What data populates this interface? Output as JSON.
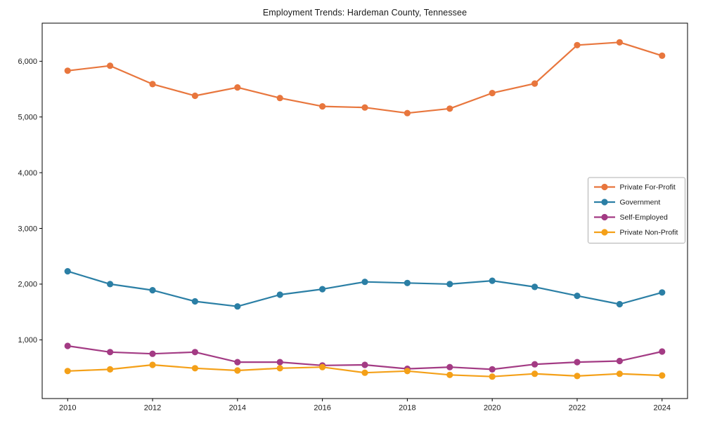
{
  "chart_data": {
    "type": "line",
    "title": "Employment Trends: Hardeman County, Tennessee",
    "x": [
      2010,
      2011,
      2012,
      2013,
      2014,
      2015,
      2016,
      2017,
      2018,
      2019,
      2020,
      2021,
      2022,
      2023,
      2024
    ],
    "series": [
      {
        "name": "Private For-Profit",
        "color": "#e8763d",
        "values": [
          5830,
          5920,
          5590,
          5380,
          5530,
          5340,
          5190,
          5170,
          5070,
          5150,
          5430,
          5600,
          6290,
          6340,
          6100
        ]
      },
      {
        "name": "Government",
        "color": "#2b7fa5",
        "values": [
          2230,
          2000,
          1890,
          1690,
          1600,
          1810,
          1910,
          2040,
          2020,
          2000,
          2060,
          1950,
          1790,
          1640,
          1850
        ]
      },
      {
        "name": "Self-Employed",
        "color": "#a33b84",
        "values": [
          890,
          780,
          750,
          780,
          600,
          600,
          540,
          550,
          480,
          510,
          470,
          560,
          600,
          620,
          790
        ]
      },
      {
        "name": "Private Non-Profit",
        "color": "#f4a018",
        "values": [
          440,
          470,
          550,
          490,
          450,
          490,
          510,
          410,
          440,
          370,
          340,
          390,
          350,
          390,
          360
        ]
      }
    ],
    "xticks": [
      "2010",
      "2012",
      "2014",
      "2016",
      "2018",
      "2020",
      "2022",
      "2024"
    ],
    "xtick_values": [
      2010,
      2012,
      2014,
      2016,
      2018,
      2020,
      2022,
      2024
    ],
    "yticks": [
      1000,
      2000,
      3000,
      4000,
      5000,
      6000
    ],
    "ytick_labels": [
      "1,000",
      "2,000",
      "3,000",
      "4,000",
      "5,000",
      "6,000"
    ],
    "xlim": [
      2009.4,
      2024.6
    ],
    "ylim": [
      -54,
      6684
    ],
    "grid": false,
    "legend_position": "center-right",
    "axis_color": "#000000",
    "tick_label_color": "#1a1a1a",
    "background_color": "#ffffff"
  }
}
